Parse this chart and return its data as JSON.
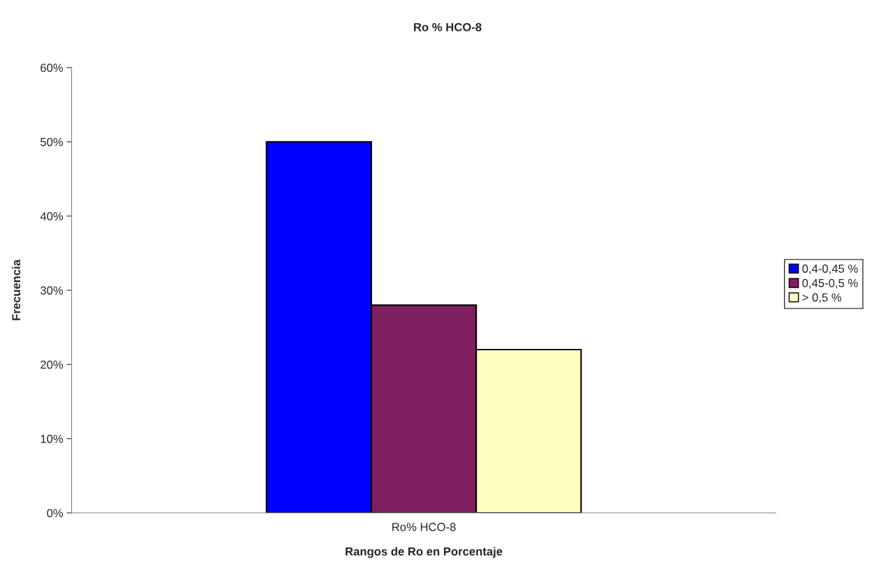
{
  "chart_data": {
    "type": "bar",
    "title": "Ro % HCO-8",
    "xlabel": "Rangos de Ro en Porcentaje",
    "ylabel": "Frecuencia",
    "categories": [
      "Ro% HCO-8"
    ],
    "series": [
      {
        "name": "0,4-0,45 %",
        "color": "#0000ff",
        "values": [
          50
        ]
      },
      {
        "name": "0,45-0,5 %",
        "color": "#7f1f5f",
        "values": [
          28
        ]
      },
      {
        "name": "> 0,5 %",
        "color": "#ffffc0",
        "values": [
          22
        ]
      }
    ],
    "ylim": [
      0,
      60
    ],
    "yticks": [
      {
        "value": 0,
        "label": "0%"
      },
      {
        "value": 10,
        "label": "10%"
      },
      {
        "value": 20,
        "label": "20%"
      },
      {
        "value": 30,
        "label": "30%"
      },
      {
        "value": 40,
        "label": "40%"
      },
      {
        "value": 50,
        "label": "50%"
      },
      {
        "value": 60,
        "label": "60%"
      }
    ],
    "grid": false,
    "legend": "right"
  }
}
